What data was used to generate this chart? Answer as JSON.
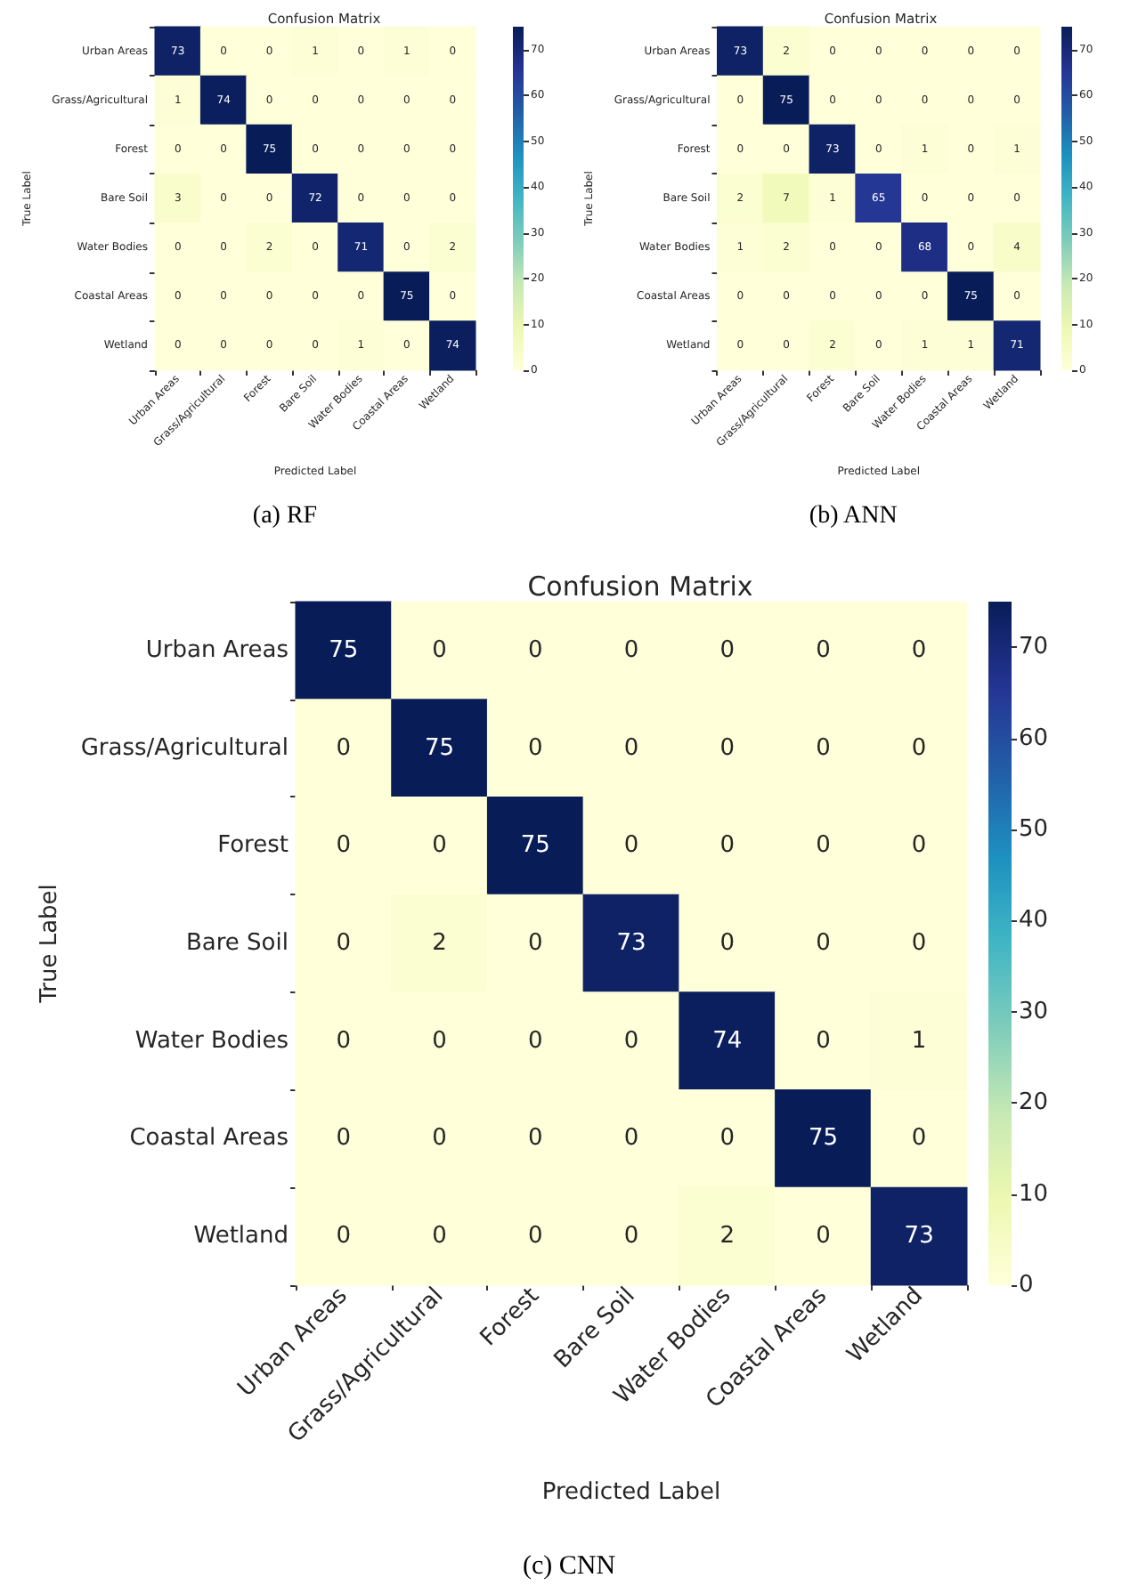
{
  "chart_data": [
    {
      "type": "heatmap",
      "title": "Confusion Matrix",
      "xlabel": "Predicted Label",
      "ylabel": "True Label",
      "categories": [
        "Urban Areas",
        "Grass/Agricultural",
        "Forest",
        "Bare Soil",
        "Water Bodies",
        "Coastal Areas",
        "Wetland"
      ],
      "y_categories": [
        "Urban Areas",
        "Grass/Agricultural",
        "Forest",
        "Bare Soil",
        "Water Bodies",
        "Coastal Areas",
        "Wetland"
      ],
      "cells": [
        [
          73,
          0,
          0,
          1,
          0,
          1,
          0
        ],
        [
          1,
          74,
          0,
          0,
          0,
          0,
          0
        ],
        [
          0,
          0,
          75,
          0,
          0,
          0,
          0
        ],
        [
          3,
          0,
          0,
          72,
          0,
          0,
          0
        ],
        [
          0,
          0,
          2,
          0,
          71,
          0,
          2
        ],
        [
          0,
          0,
          0,
          0,
          0,
          75,
          0
        ],
        [
          0,
          0,
          0,
          0,
          1,
          0,
          74
        ]
      ],
      "clim": [
        0,
        75
      ],
      "cticks": [
        0,
        10,
        20,
        30,
        40,
        50,
        60,
        70
      ],
      "data_labels": true,
      "annotations": [
        "(a) RF"
      ]
    },
    {
      "type": "heatmap",
      "title": "Confusion Matrix",
      "xlabel": "Predicted Label",
      "ylabel": "True Label",
      "categories": [
        "Urban Areas",
        "Grass/Agricultural",
        "Forest",
        "Bare Soil",
        "Water Bodies",
        "Coastal Areas",
        "Wetland"
      ],
      "y_categories": [
        "Urban Areas",
        "Grass/Agricultural",
        "Forest",
        "Bare Soil",
        "Water Bodies",
        "Coastal Areas",
        "Wetland"
      ],
      "cells": [
        [
          73,
          2,
          0,
          0,
          0,
          0,
          0
        ],
        [
          0,
          75,
          0,
          0,
          0,
          0,
          0
        ],
        [
          0,
          0,
          73,
          0,
          1,
          0,
          1
        ],
        [
          2,
          7,
          1,
          65,
          0,
          0,
          0
        ],
        [
          1,
          2,
          0,
          0,
          68,
          0,
          4
        ],
        [
          0,
          0,
          0,
          0,
          0,
          75,
          0
        ],
        [
          0,
          0,
          2,
          0,
          1,
          1,
          71
        ]
      ],
      "clim": [
        0,
        75
      ],
      "cticks": [
        0,
        10,
        20,
        30,
        40,
        50,
        60,
        70
      ],
      "data_labels": true,
      "annotations": [
        "(b) ANN"
      ]
    },
    {
      "type": "heatmap",
      "title": "Confusion Matrix",
      "xlabel": "Predicted Label",
      "ylabel": "True Label",
      "categories": [
        "Urban Areas",
        "Grass/Agricultural",
        "Forest",
        "Bare Soil",
        "Water Bodies",
        "Coastal Areas",
        "Wetland"
      ],
      "y_categories": [
        "Urban Areas",
        "Grass/Agricultural",
        "Forest",
        "Bare Soil",
        "Water Bodies",
        "Coastal Areas",
        "Wetland"
      ],
      "cells": [
        [
          75,
          0,
          0,
          0,
          0,
          0,
          0
        ],
        [
          0,
          75,
          0,
          0,
          0,
          0,
          0
        ],
        [
          0,
          0,
          75,
          0,
          0,
          0,
          0
        ],
        [
          0,
          2,
          0,
          73,
          0,
          0,
          0
        ],
        [
          0,
          0,
          0,
          0,
          74,
          0,
          1
        ],
        [
          0,
          0,
          0,
          0,
          0,
          75,
          0
        ],
        [
          0,
          0,
          0,
          0,
          2,
          0,
          73
        ]
      ],
      "clim": [
        0,
        75
      ],
      "cticks": [
        0,
        10,
        20,
        30,
        40,
        50,
        60,
        70
      ],
      "data_labels": true,
      "annotations": [
        "(c) CNN"
      ]
    }
  ]
}
